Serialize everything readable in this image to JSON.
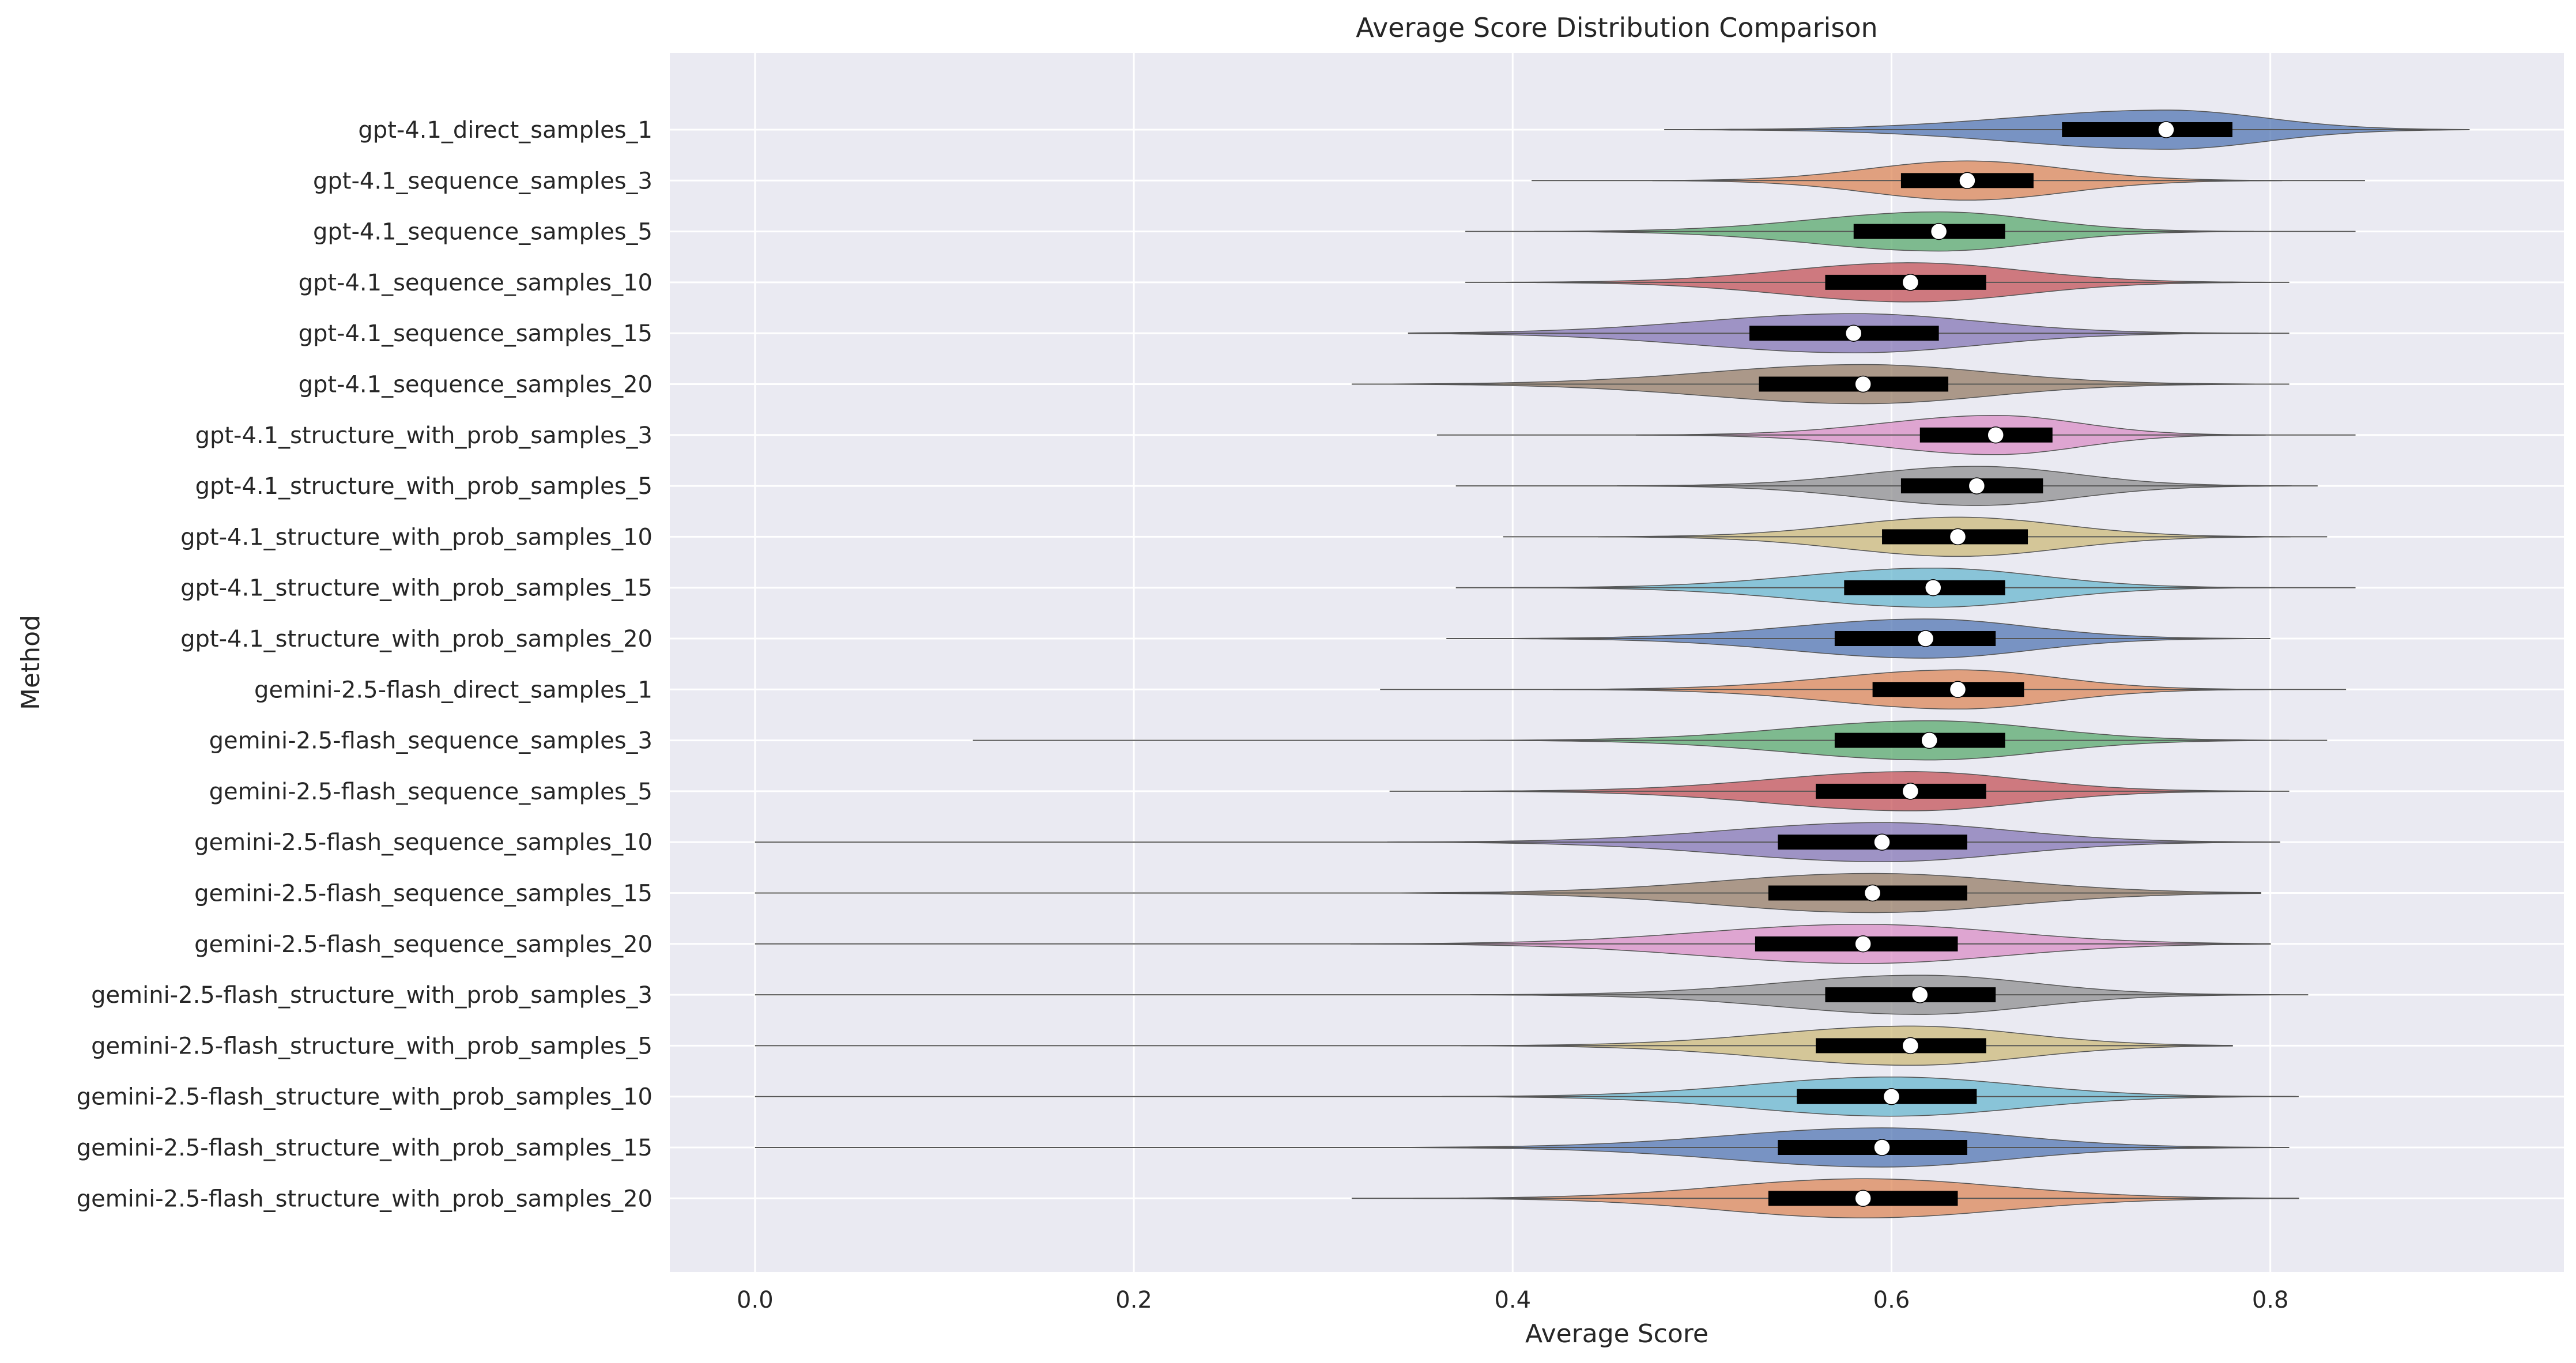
{
  "chart_data": {
    "type": "violin",
    "orientation": "horizontal",
    "title": "Average Score Distribution Comparison",
    "xlabel": "Average Score",
    "ylabel": "Method",
    "xlim": [
      -0.045,
      0.955
    ],
    "xticks": [
      0.0,
      0.2,
      0.4,
      0.6,
      0.8
    ],
    "xtick_labels": [
      "0.0",
      "0.2",
      "0.4",
      "0.6",
      "0.8"
    ],
    "grid": true,
    "palette": [
      "#4c72b0",
      "#dd8452",
      "#55a868",
      "#c44e52",
      "#8172b3",
      "#937860",
      "#da8bc3",
      "#8c8c8c",
      "#ccb974",
      "#64b5cd"
    ],
    "background_color": "#eaeaf2",
    "series": [
      {
        "name": "gpt-4.1_direct_samples_1",
        "min": 0.48,
        "q1": 0.69,
        "median": 0.745,
        "q3": 0.78,
        "max": 0.905
      },
      {
        "name": "gpt-4.1_sequence_samples_3",
        "min": 0.41,
        "q1": 0.605,
        "median": 0.64,
        "q3": 0.675,
        "max": 0.85
      },
      {
        "name": "gpt-4.1_sequence_samples_5",
        "min": 0.375,
        "q1": 0.58,
        "median": 0.625,
        "q3": 0.66,
        "max": 0.845
      },
      {
        "name": "gpt-4.1_sequence_samples_10",
        "min": 0.375,
        "q1": 0.565,
        "median": 0.61,
        "q3": 0.65,
        "max": 0.81
      },
      {
        "name": "gpt-4.1_sequence_samples_15",
        "min": 0.345,
        "q1": 0.525,
        "median": 0.58,
        "q3": 0.625,
        "max": 0.81
      },
      {
        "name": "gpt-4.1_sequence_samples_20",
        "min": 0.315,
        "q1": 0.53,
        "median": 0.585,
        "q3": 0.63,
        "max": 0.81
      },
      {
        "name": "gpt-4.1_structure_with_prob_samples_3",
        "min": 0.36,
        "q1": 0.615,
        "median": 0.655,
        "q3": 0.685,
        "max": 0.845
      },
      {
        "name": "gpt-4.1_structure_with_prob_samples_5",
        "min": 0.37,
        "q1": 0.605,
        "median": 0.645,
        "q3": 0.68,
        "max": 0.825
      },
      {
        "name": "gpt-4.1_structure_with_prob_samples_10",
        "min": 0.395,
        "q1": 0.595,
        "median": 0.635,
        "q3": 0.672,
        "max": 0.83
      },
      {
        "name": "gpt-4.1_structure_with_prob_samples_15",
        "min": 0.37,
        "q1": 0.575,
        "median": 0.622,
        "q3": 0.66,
        "max": 0.845
      },
      {
        "name": "gpt-4.1_structure_with_prob_samples_20",
        "min": 0.365,
        "q1": 0.57,
        "median": 0.618,
        "q3": 0.655,
        "max": 0.8
      },
      {
        "name": "gemini-2.5-flash_direct_samples_1",
        "min": 0.33,
        "q1": 0.59,
        "median": 0.635,
        "q3": 0.67,
        "max": 0.84
      },
      {
        "name": "gemini-2.5-flash_sequence_samples_3",
        "min": 0.115,
        "q1": 0.57,
        "median": 0.62,
        "q3": 0.66,
        "max": 0.83
      },
      {
        "name": "gemini-2.5-flash_sequence_samples_5",
        "min": 0.335,
        "q1": 0.56,
        "median": 0.61,
        "q3": 0.65,
        "max": 0.81
      },
      {
        "name": "gemini-2.5-flash_sequence_samples_10",
        "min": 0.0,
        "q1": 0.54,
        "median": 0.595,
        "q3": 0.64,
        "max": 0.805
      },
      {
        "name": "gemini-2.5-flash_sequence_samples_15",
        "min": 0.0,
        "q1": 0.535,
        "median": 0.59,
        "q3": 0.64,
        "max": 0.795
      },
      {
        "name": "gemini-2.5-flash_sequence_samples_20",
        "min": 0.0,
        "q1": 0.528,
        "median": 0.585,
        "q3": 0.635,
        "max": 0.8
      },
      {
        "name": "gemini-2.5-flash_structure_with_prob_samples_3",
        "min": 0.0,
        "q1": 0.565,
        "median": 0.615,
        "q3": 0.655,
        "max": 0.82
      },
      {
        "name": "gemini-2.5-flash_structure_with_prob_samples_5",
        "min": 0.0,
        "q1": 0.56,
        "median": 0.61,
        "q3": 0.65,
        "max": 0.78
      },
      {
        "name": "gemini-2.5-flash_structure_with_prob_samples_10",
        "min": 0.0,
        "q1": 0.55,
        "median": 0.6,
        "q3": 0.645,
        "max": 0.815
      },
      {
        "name": "gemini-2.5-flash_structure_with_prob_samples_15",
        "min": 0.0,
        "q1": 0.54,
        "median": 0.595,
        "q3": 0.64,
        "max": 0.81
      },
      {
        "name": "gemini-2.5-flash_structure_with_prob_samples_20",
        "min": 0.315,
        "q1": 0.535,
        "median": 0.585,
        "q3": 0.635,
        "max": 0.815
      }
    ]
  }
}
